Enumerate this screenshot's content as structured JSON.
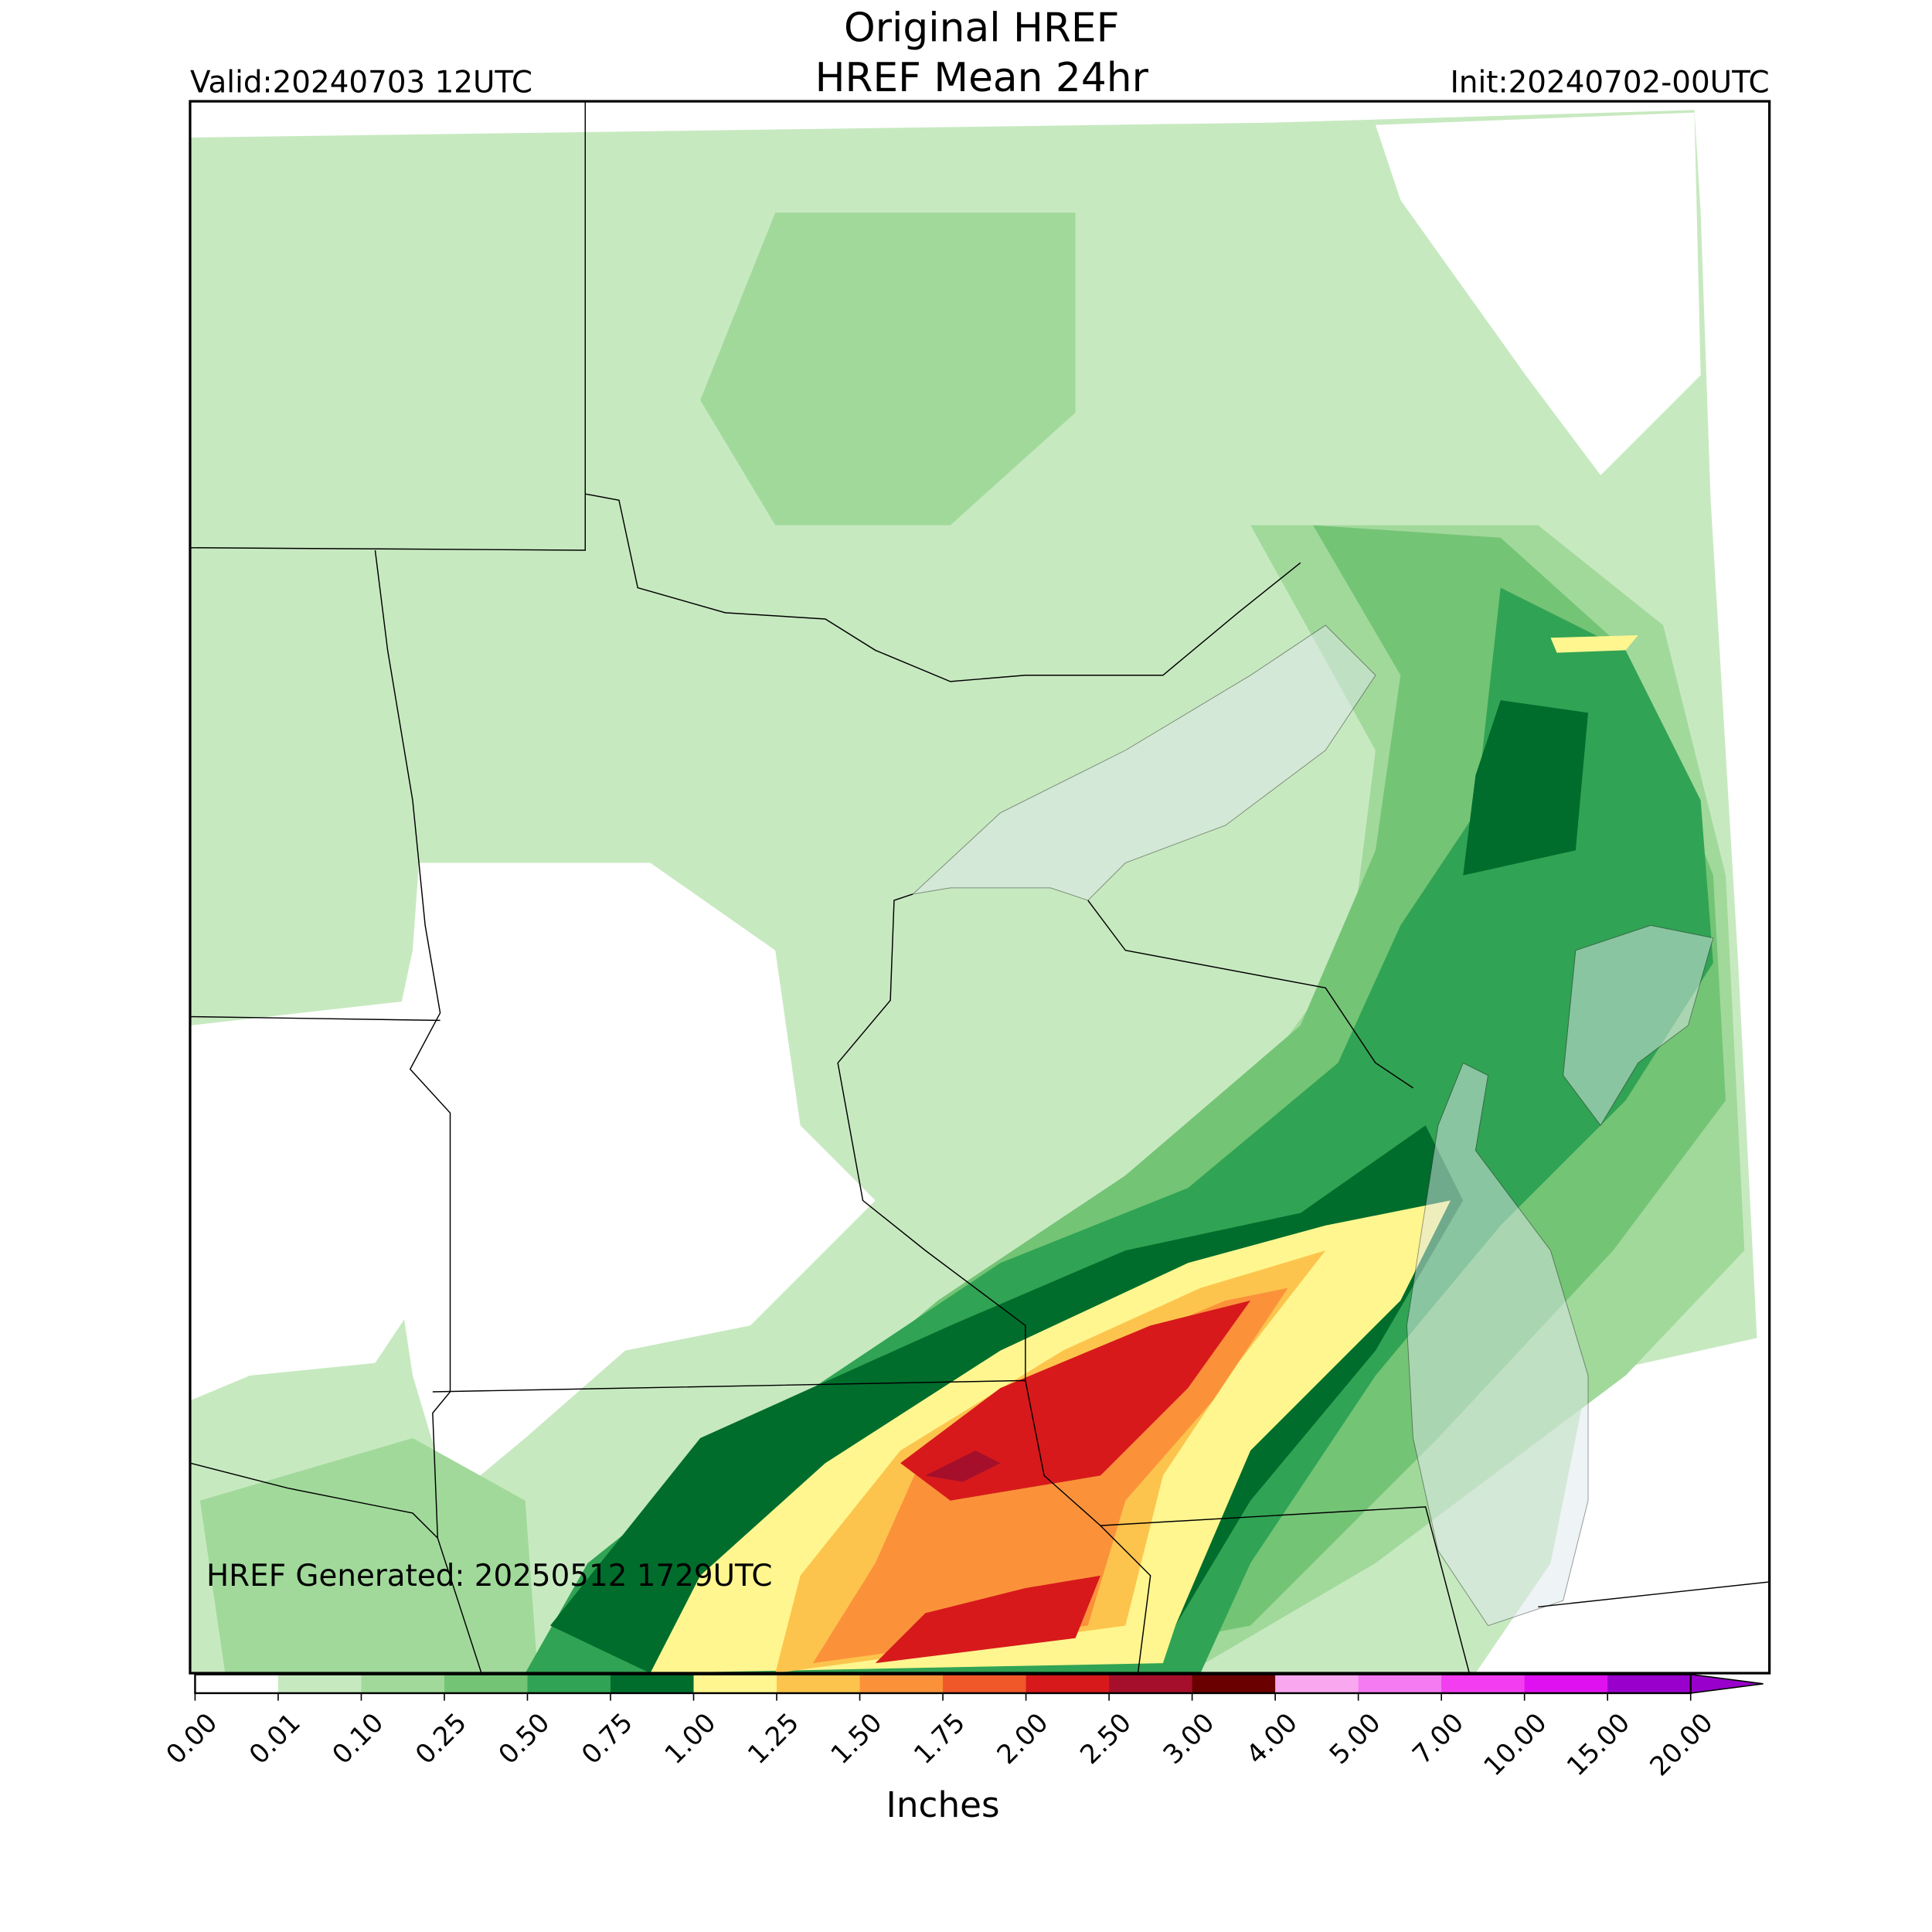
{
  "header": {
    "title": "Original HREF",
    "subtitle": "HREF Mean 24hr",
    "valid": "Valid:20240703 12UTC",
    "init": "Init:20240702-00UTC"
  },
  "map": {
    "annotation": "HREF Generated: 20250512 1729UTC"
  },
  "colorbar": {
    "label": "Inches",
    "ticks": [
      "0.00",
      "0.01",
      "0.10",
      "0.25",
      "0.50",
      "0.75",
      "1.00",
      "1.25",
      "1.50",
      "1.75",
      "2.00",
      "2.50",
      "3.00",
      "4.00",
      "5.00",
      "7.00",
      "10.00",
      "15.00",
      "20.00"
    ],
    "colors": [
      "#ffffff",
      "#c7e9c0",
      "#a1d99b",
      "#74c476",
      "#31a354",
      "#006d2c",
      "#fff68f",
      "#fdc44d",
      "#fb923a",
      "#f0582a",
      "#d7191c",
      "#a50f2b",
      "#6b0000",
      "#f9a8f0",
      "#f57bf2",
      "#f23df0",
      "#e011f0",
      "#9a00cc"
    ]
  }
}
